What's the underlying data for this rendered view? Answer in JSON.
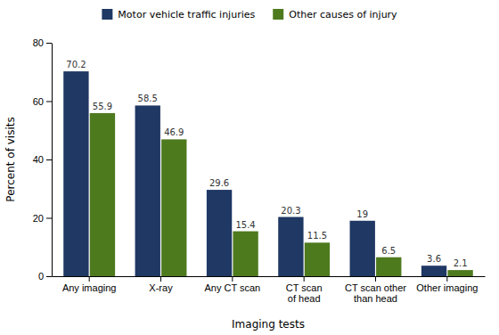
{
  "chart_data": {
    "type": "bar",
    "categories": [
      "Any imaging",
      "X-ray",
      "Any CT scan",
      "CT scan\nof head",
      "CT scan other\nthan head",
      "Other imaging"
    ],
    "series": [
      {
        "name": "Motor vehicle traffic injuries",
        "color": "#1f3864",
        "values": [
          70.2,
          58.5,
          29.6,
          20.3,
          19.0,
          3.6
        ]
      },
      {
        "name": "Other causes of injury",
        "color": "#4e7a1e",
        "values": [
          55.9,
          46.9,
          15.4,
          11.5,
          6.5,
          2.1
        ]
      }
    ],
    "xlabel": "Imaging tests",
    "ylabel": "Percent of visits",
    "ylim": [
      0,
      80
    ],
    "yticks": [
      0,
      20,
      40,
      60,
      80
    ],
    "data_labels": true,
    "grid": false,
    "legend": "top"
  }
}
